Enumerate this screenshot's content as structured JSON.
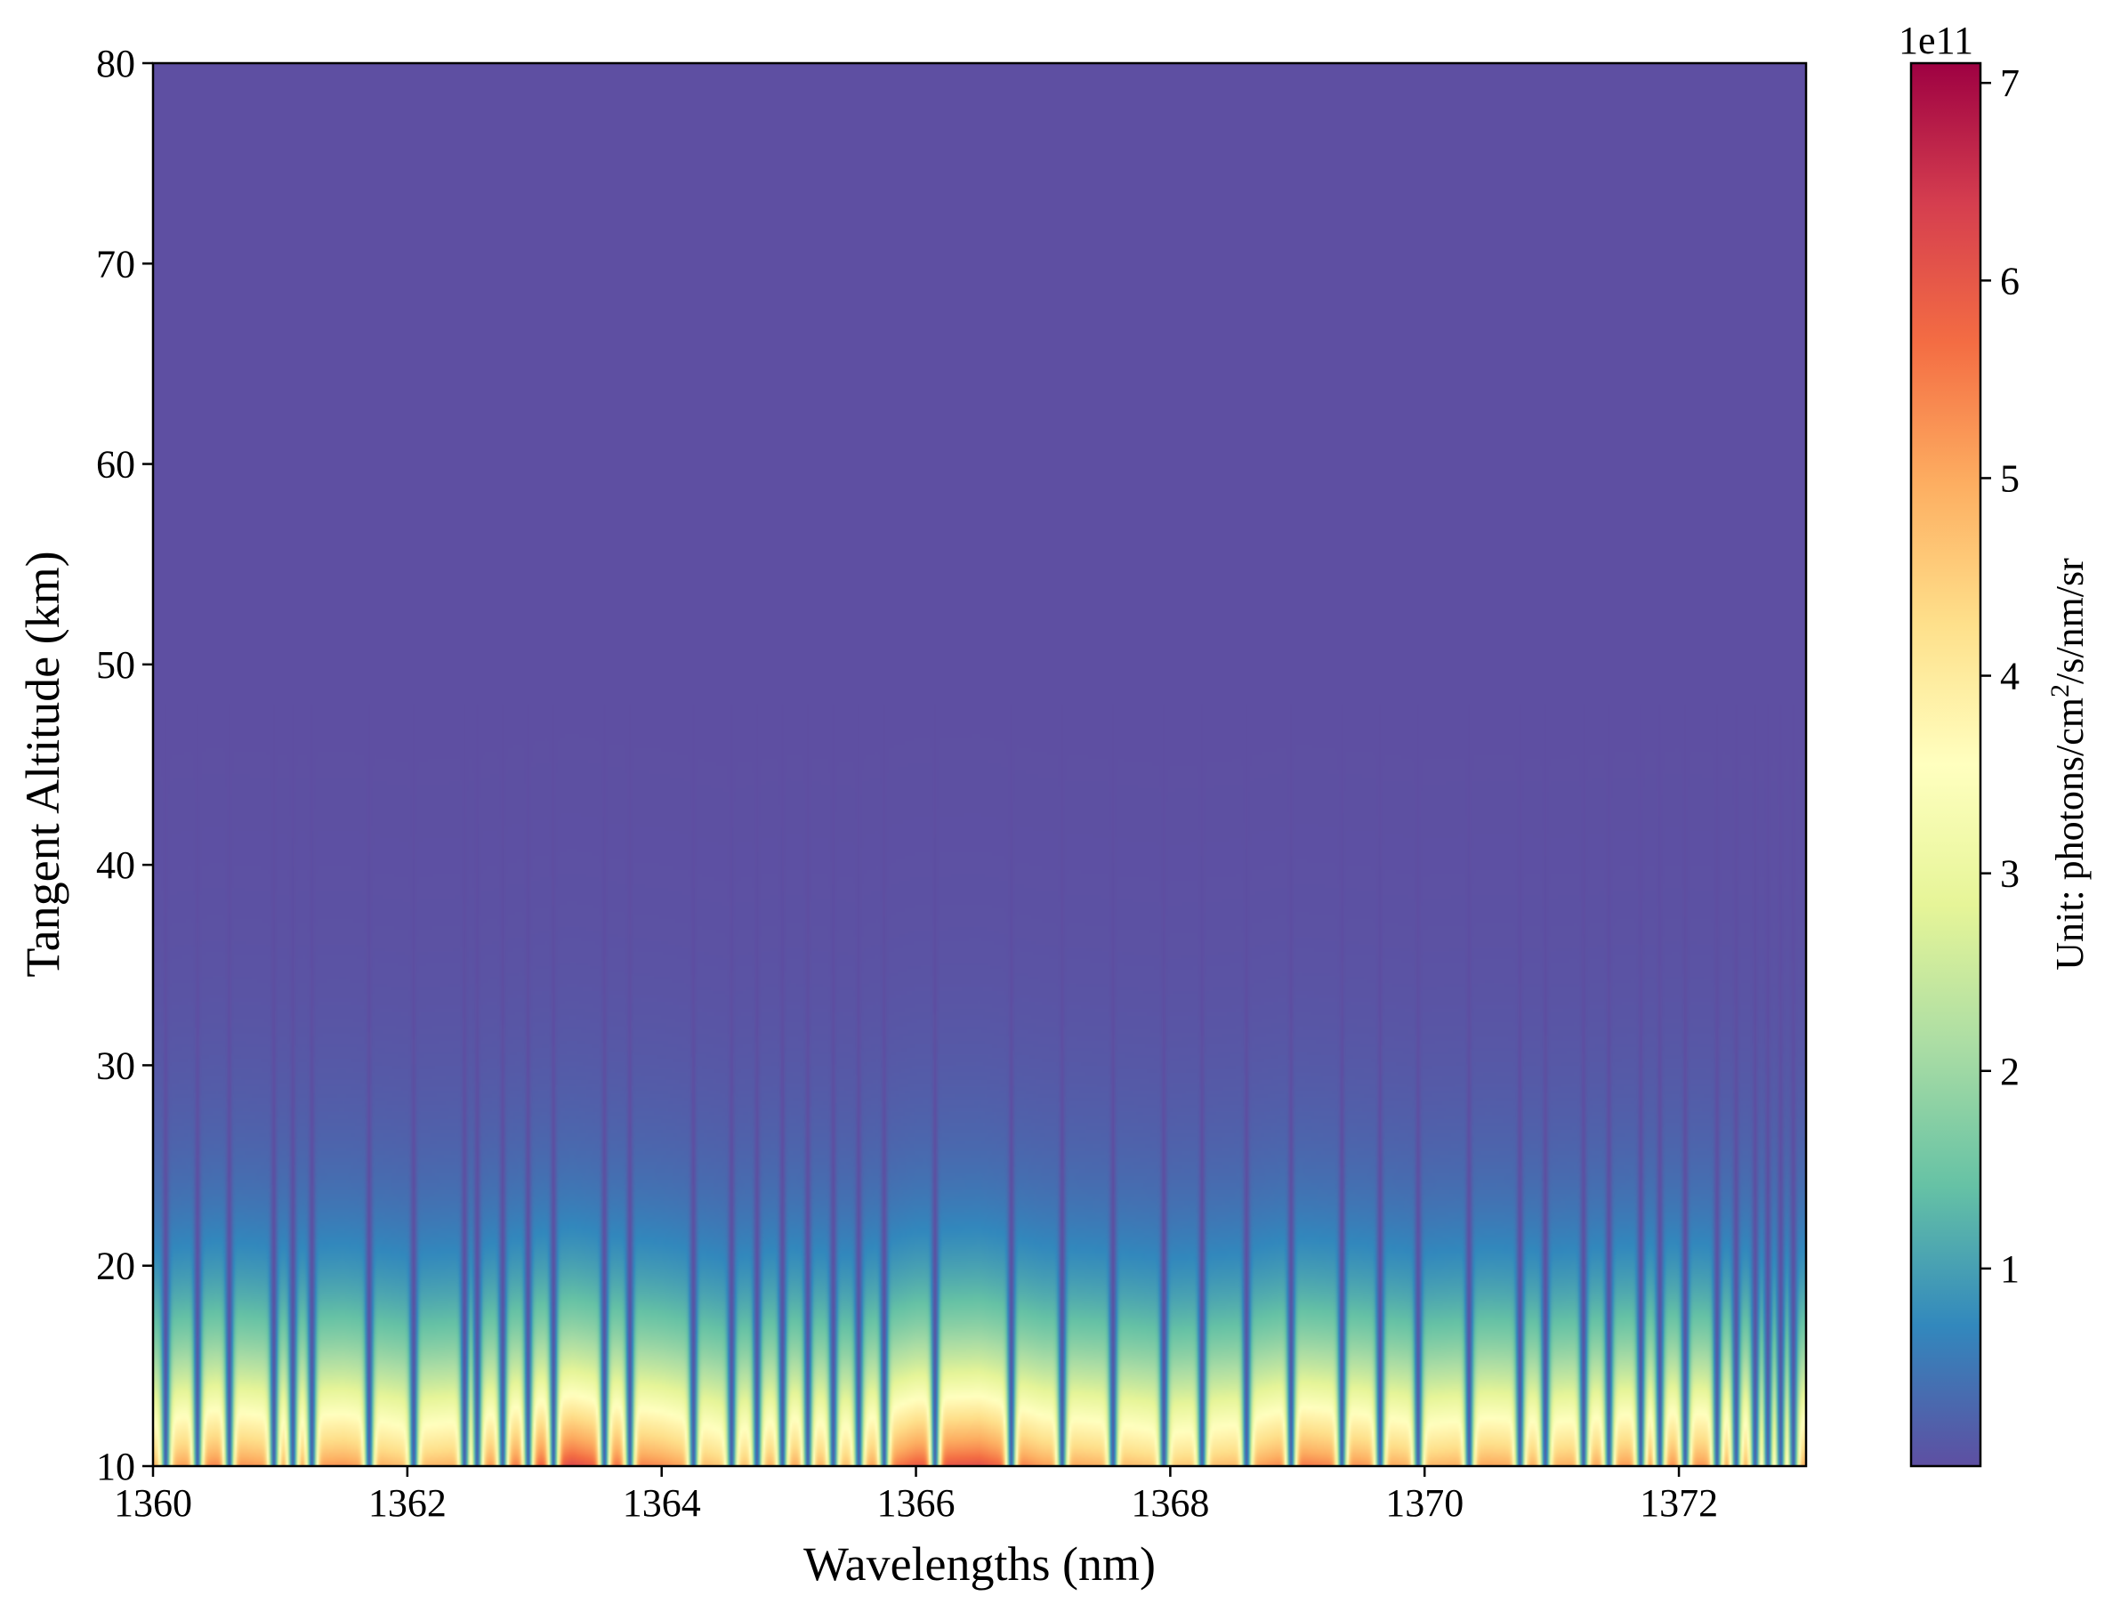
{
  "chart_data": {
    "type": "heatmap",
    "title": "",
    "xlabel": "Wavelengths (nm)",
    "ylabel": "Tangent Altitude (km)",
    "xlim": [
      1360,
      1373
    ],
    "ylim": [
      10,
      80
    ],
    "x_ticks": [
      1360,
      1362,
      1364,
      1366,
      1368,
      1370,
      1372
    ],
    "y_ticks": [
      10,
      20,
      30,
      40,
      50,
      60,
      70,
      80
    ],
    "colormap": "Spectral_r",
    "colorbar": {
      "label": "Unit: photons/cm² /s/nm/sr",
      "label_prefix": "Unit: photons/cm",
      "label_sup": "2",
      "label_suffix": "/s/nm/sr",
      "exponent_label": "1e11",
      "range": [
        0.0,
        7.1
      ],
      "ticks": [
        1,
        2,
        3,
        4,
        5,
        6,
        7
      ]
    },
    "absorption_lines_nm": [
      1360.1,
      1360.35,
      1360.6,
      1360.95,
      1361.1,
      1361.25,
      1361.7,
      1362.05,
      1362.45,
      1362.55,
      1362.75,
      1362.95,
      1363.15,
      1363.55,
      1363.75,
      1364.25,
      1364.55,
      1364.75,
      1364.95,
      1365.15,
      1365.35,
      1365.55,
      1365.75,
      1366.15,
      1366.75,
      1367.15,
      1367.55,
      1367.95,
      1368.25,
      1368.6,
      1368.95,
      1369.35,
      1369.65,
      1369.95,
      1370.35,
      1370.75,
      1370.95,
      1371.25,
      1371.45,
      1371.7,
      1371.85,
      1372.05,
      1372.3,
      1372.45,
      1372.6,
      1372.7,
      1372.8,
      1372.9
    ],
    "surface_peak_by_wavelength_nm": [
      [
        1360.0,
        5.6
      ],
      [
        1360.5,
        6.2
      ],
      [
        1361.0,
        5.8
      ],
      [
        1361.5,
        6.0
      ],
      [
        1362.0,
        5.4
      ],
      [
        1362.5,
        5.7
      ],
      [
        1363.0,
        6.6
      ],
      [
        1363.3,
        7.1
      ],
      [
        1363.6,
        6.5
      ],
      [
        1364.0,
        6.1
      ],
      [
        1364.5,
        5.2
      ],
      [
        1365.0,
        5.8
      ],
      [
        1365.5,
        5.4
      ],
      [
        1366.0,
        6.8
      ],
      [
        1366.5,
        7.0
      ],
      [
        1367.0,
        5.9
      ],
      [
        1367.5,
        5.6
      ],
      [
        1368.0,
        5.2
      ],
      [
        1368.5,
        5.5
      ],
      [
        1369.0,
        6.4
      ],
      [
        1369.5,
        6.0
      ],
      [
        1370.0,
        5.5
      ],
      [
        1370.5,
        5.8
      ],
      [
        1371.0,
        5.6
      ],
      [
        1371.5,
        5.9
      ],
      [
        1372.0,
        6.1
      ],
      [
        1372.5,
        5.8
      ],
      [
        1373.0,
        5.7
      ]
    ]
  }
}
